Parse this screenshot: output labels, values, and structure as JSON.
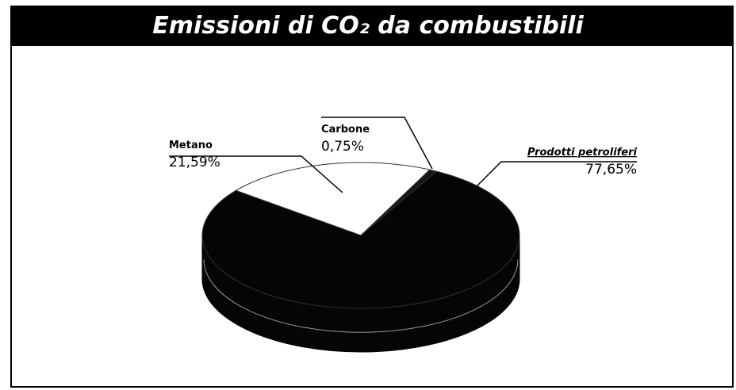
{
  "chart_data": {
    "type": "pie",
    "title": "Emissioni di CO₂ da combustibili",
    "categories": [
      "Metano",
      "Carbone",
      "Prodotti petroliferi"
    ],
    "values": [
      21.59,
      0.75,
      77.65
    ],
    "value_labels": [
      "21,59%",
      "0,75%",
      "77,65%"
    ],
    "colors": [
      "#ffffff",
      "#141414",
      "#050505"
    ]
  }
}
